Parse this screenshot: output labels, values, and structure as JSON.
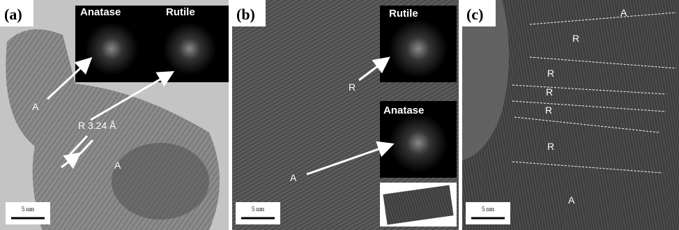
{
  "panels": [
    {
      "label": "(a)",
      "scale_bar": "5 nm",
      "insets": [
        {
          "label": "Anatase"
        },
        {
          "label": "Rutile"
        }
      ],
      "annotations": [
        "A",
        "R 3.24 Å",
        "A"
      ]
    },
    {
      "label": "(b)",
      "scale_bar": "5 nm",
      "insets": [
        {
          "label": "Rutile"
        },
        {
          "label": "Anatase"
        }
      ],
      "annotations": [
        "R",
        "A"
      ]
    },
    {
      "label": "(c)",
      "scale_bar": "5 nm",
      "annotations": [
        "A",
        "R",
        "R",
        "R",
        "R",
        "R",
        "A"
      ]
    }
  ]
}
